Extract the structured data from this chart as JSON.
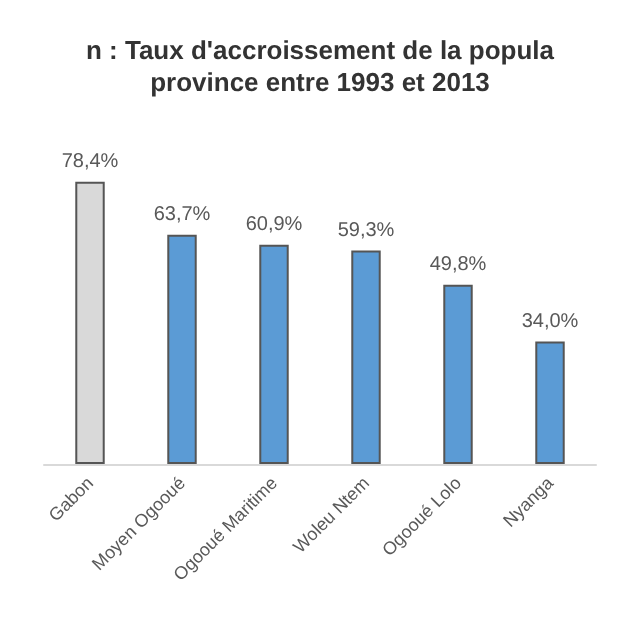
{
  "chart_data": {
    "type": "bar",
    "title": "n : Taux d'accroissement de la popula\nprovince entre 1993 et 2013",
    "categories": [
      "Gabon",
      "Moyen Ogooué",
      "Ogooué Maritime",
      "Woleu Ntem",
      "Ogooué Lolo",
      "Nyanga"
    ],
    "values": [
      78.4,
      63.7,
      60.9,
      59.3,
      49.8,
      34.0
    ],
    "colors": [
      "#d9d9d9",
      "#5b9bd5",
      "#5b9bd5",
      "#5b9bd5",
      "#5b9bd5",
      "#5b9bd5"
    ],
    "value_labels": [
      "78,4%",
      "63,7%",
      "60,9%",
      "59,3%",
      "49,8%",
      "34,0%"
    ],
    "tick_labels": "x"
  }
}
